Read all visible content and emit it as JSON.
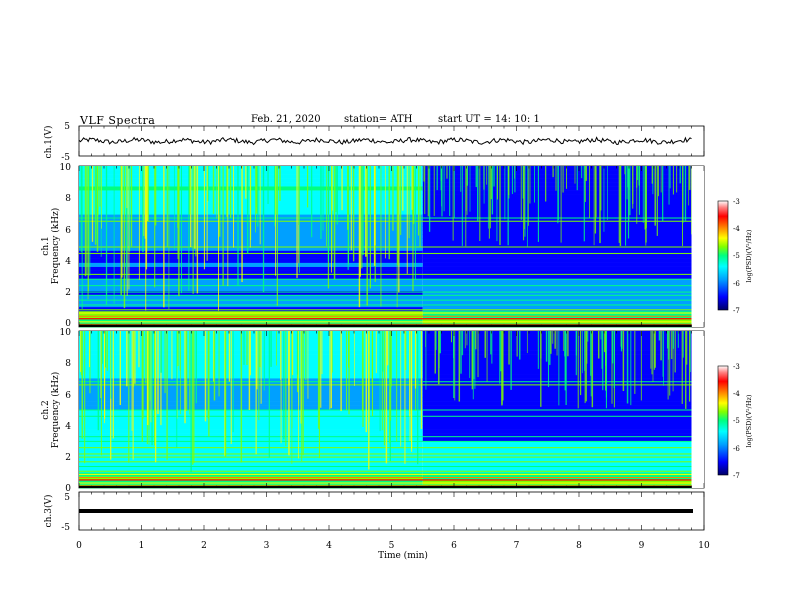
{
  "header": {
    "title": "VLF  Spectra",
    "date": "Feb. 21, 2020",
    "station": "station= ATH",
    "start_ut": "start  UT  =    14: 10: 1"
  },
  "chart_data": [
    {
      "type": "line",
      "panel": "ch1-waveform",
      "ylabel": "ch.1(V)",
      "ylim": [
        -5,
        5
      ],
      "yticks": [
        "5",
        "-5"
      ],
      "x_range_min": [
        0,
        9.8
      ]
    },
    {
      "type": "heatmap",
      "panel": "ch1-spectrogram",
      "ylabel": "Frequency  (kHz)",
      "channel_label": "ch.1",
      "ylim": [
        0,
        10
      ],
      "yticks": [
        "0",
        "2",
        "4",
        "6",
        "8",
        "10"
      ],
      "x_range_min": [
        0,
        9.8
      ],
      "colorbar": {
        "label": "log(PSD)(V²/Hz)",
        "range": [
          -7,
          -3
        ],
        "ticks": [
          "-3",
          "-4",
          "-5",
          "-6",
          "-7"
        ]
      }
    },
    {
      "type": "heatmap",
      "panel": "ch2-spectrogram",
      "ylabel": "Frequency  (kHz)",
      "channel_label": "ch.2",
      "ylim": [
        0,
        10
      ],
      "yticks": [
        "0",
        "2",
        "4",
        "6",
        "8",
        "10"
      ],
      "x_range_min": [
        0,
        9.8
      ],
      "colorbar": {
        "label": "log(PSD)(V²/Hz)",
        "range": [
          -7,
          -3
        ],
        "ticks": [
          "-3",
          "-4",
          "-5",
          "-6",
          "-7"
        ]
      }
    },
    {
      "type": "line",
      "panel": "ch3-waveform",
      "ylabel": "ch.3(V)",
      "ylim": [
        -5,
        5
      ],
      "yticks": [
        "5",
        "-5"
      ],
      "x_range_min": [
        0,
        9.8
      ],
      "constant_level_v": 0
    }
  ],
  "xaxis": {
    "label": "Time  (min)",
    "range": [
      0,
      10
    ],
    "ticks": [
      "0",
      "1",
      "2",
      "3",
      "4",
      "5",
      "6",
      "7",
      "8",
      "9",
      "10"
    ]
  },
  "colors": {
    "colormap": [
      "#000066",
      "#0000ff",
      "#00a0ff",
      "#00ffff",
      "#00ff80",
      "#80ff00",
      "#ffff00",
      "#ff8000",
      "#ff0000",
      "#ff8080",
      "#ffffff"
    ]
  }
}
